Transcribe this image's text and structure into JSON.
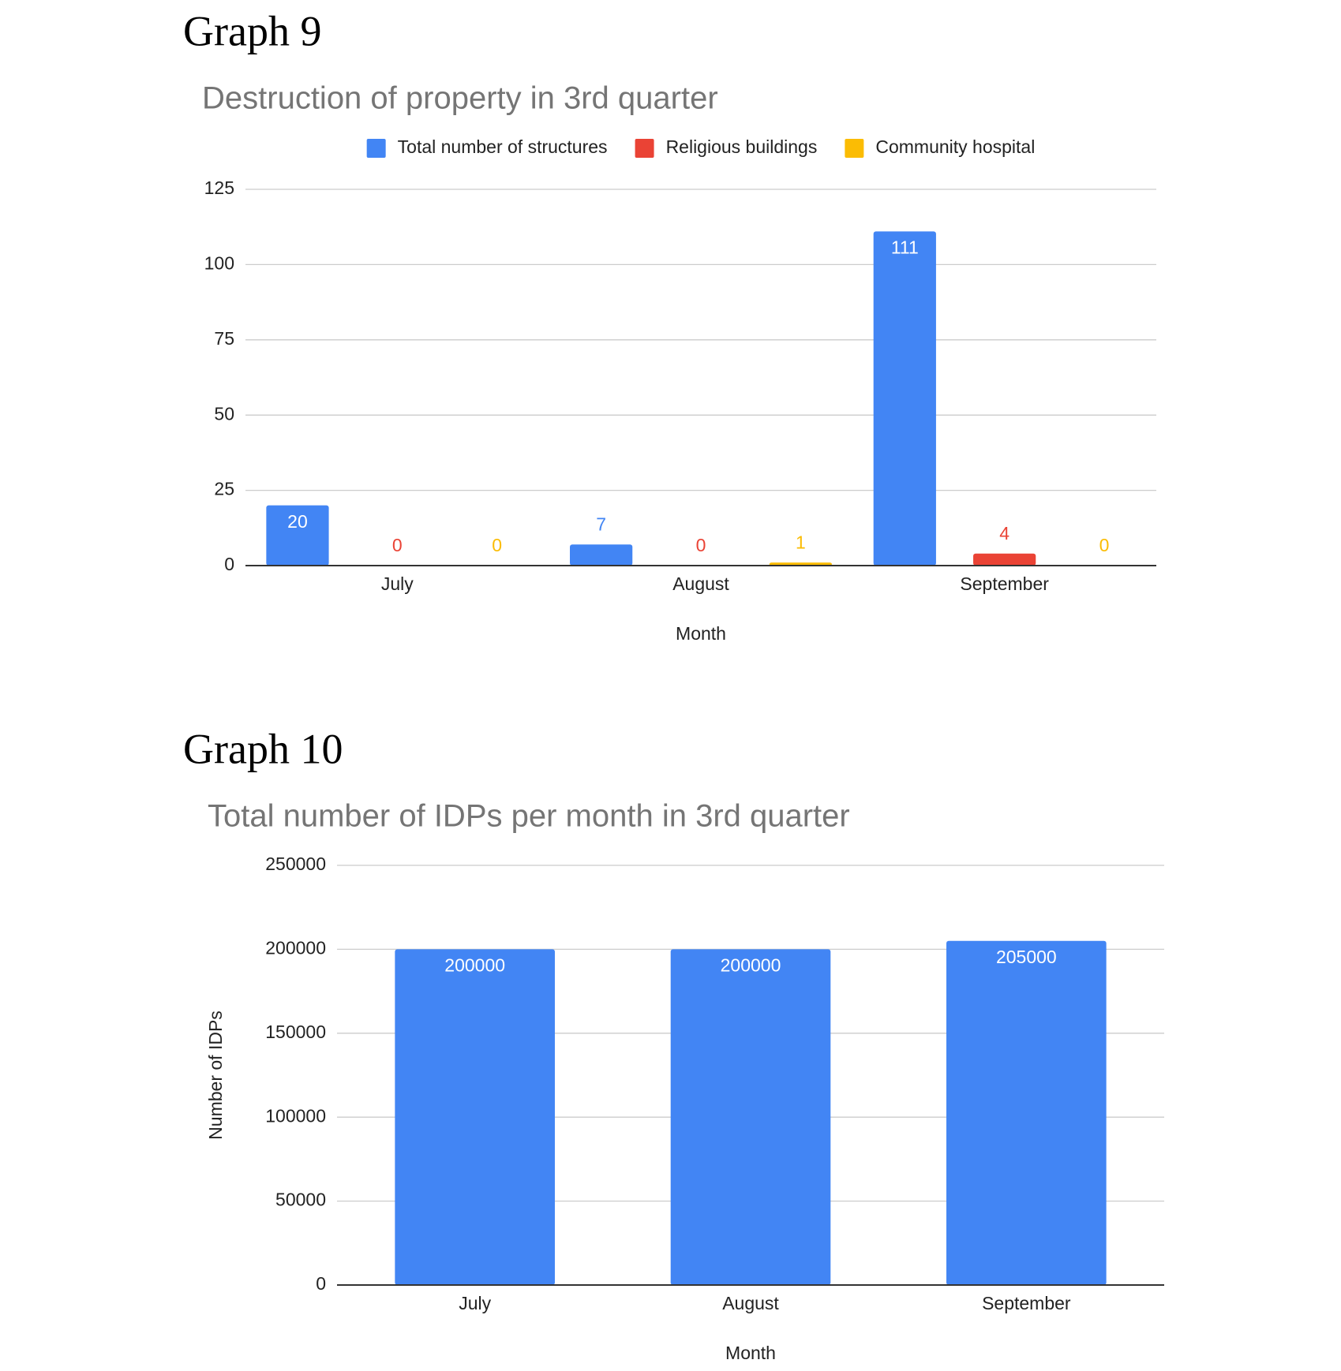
{
  "chart_data": [
    {
      "type": "bar",
      "heading": "Graph 9",
      "title": "Destruction of property in 3rd quarter",
      "x_label": "Month",
      "categories": [
        "July",
        "August",
        "September"
      ],
      "series": [
        {
          "name": "Total number of structures",
          "color": "#4285f4",
          "values": [
            20,
            7,
            111
          ]
        },
        {
          "name": "Religious buildings",
          "color": "#ea4335",
          "values": [
            0,
            0,
            4
          ]
        },
        {
          "name": "Community hospital",
          "color": "#fbbc04",
          "values": [
            0,
            1,
            0
          ]
        }
      ],
      "ylim": [
        0,
        125
      ],
      "yticks": [
        0,
        25,
        50,
        75,
        100,
        125
      ],
      "grid": true,
      "legend": "top",
      "data_labels": true
    },
    {
      "type": "bar",
      "heading": "Graph 10",
      "title": "Total number of IDPs per month in 3rd quarter",
      "x_label": "Month",
      "y_label": "Number of IDPs",
      "categories": [
        "July",
        "August",
        "September"
      ],
      "values": [
        200000,
        200000,
        205000
      ],
      "color": "#4285f4",
      "ylim": [
        0,
        250000
      ],
      "yticks": [
        0,
        50000,
        100000,
        150000,
        200000,
        250000
      ],
      "grid": true,
      "data_labels": true
    }
  ]
}
